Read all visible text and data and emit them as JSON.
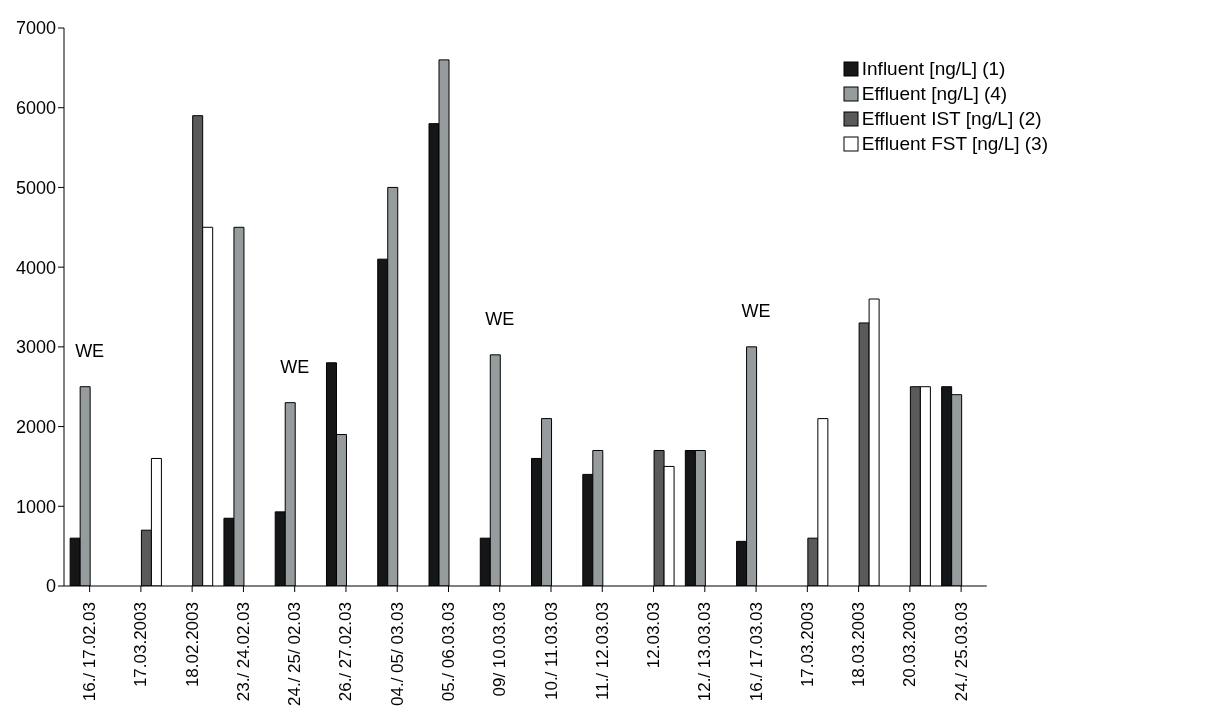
{
  "chart_data": {
    "type": "bar",
    "categories": [
      "16./ 17.02.03",
      "17.03.2003",
      "18.02.2003",
      "23./ 24.02.03",
      "24./ 25/ 02.03",
      "26./ 27.02.03",
      "04./ 05/ 03.03",
      "05./ 06.03.03",
      "09/ 10.03.03",
      "10./ 11.03.03",
      "11./ 12.03.03",
      "12.03.03",
      "12./ 13.03.03",
      "16./ 17.03.03",
      "17.03.2003",
      "18.03.2003",
      "20.03.2003",
      "24./ 25.03.03"
    ],
    "series": [
      {
        "name": "Influent [ng/L] (1)",
        "color": "#151617",
        "values": [
          600,
          null,
          null,
          850,
          930,
          2800,
          4100,
          5800,
          600,
          1600,
          1400,
          null,
          1700,
          560,
          null,
          null,
          null,
          2500
        ]
      },
      {
        "name": "Effluent [ng/L] (4)",
        "color": "#969c9e",
        "values": [
          2500,
          null,
          null,
          4500,
          2300,
          1900,
          5000,
          6600,
          2900,
          2100,
          1700,
          null,
          1700,
          3000,
          null,
          null,
          null,
          2400
        ]
      },
      {
        "name": "Effluent IST [ng/L] (2)",
        "color": "#5a5a5a",
        "values": [
          null,
          700,
          5900,
          null,
          null,
          null,
          null,
          null,
          null,
          null,
          null,
          1700,
          null,
          null,
          600,
          3300,
          2500,
          null
        ]
      },
      {
        "name": "Effluent FST [ng/L] (3)",
        "color": "#ffffff",
        "values": [
          null,
          1600,
          4500,
          null,
          null,
          null,
          null,
          null,
          null,
          null,
          null,
          1500,
          null,
          null,
          2100,
          3600,
          2500,
          null
        ]
      }
    ],
    "ylim": [
      0,
      7000
    ],
    "yticks": [
      0,
      1000,
      2000,
      3000,
      4000,
      5000,
      6000,
      7000
    ],
    "grid": false,
    "legend": "top right",
    "annotations": [
      "WE",
      "WE",
      "WE",
      "WE"
    ]
  }
}
